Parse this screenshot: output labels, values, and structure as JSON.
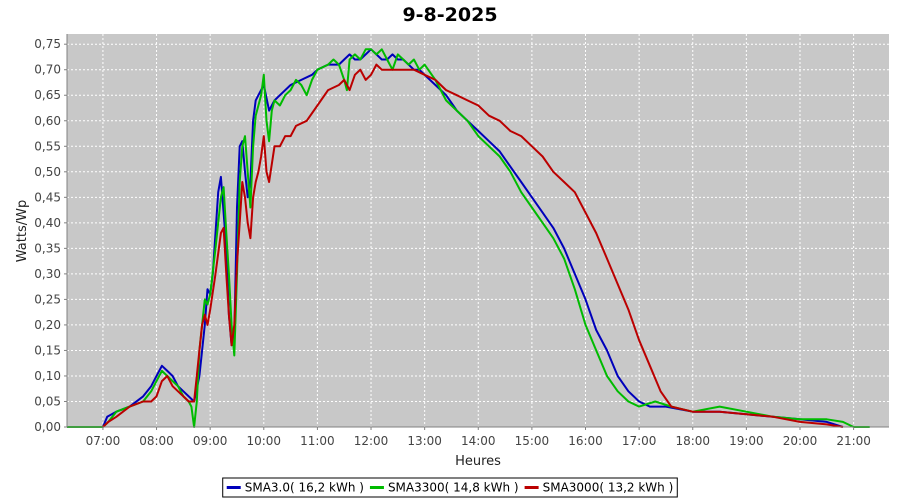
{
  "chart_data": {
    "type": "line",
    "title": "9-8-2025",
    "xlabel": "Heures",
    "ylabel": "Watts/Wp",
    "x_unit": "hours",
    "xlim": [
      6.33,
      21.66
    ],
    "ylim": [
      0,
      0.77
    ],
    "x_ticks": [
      {
        "value": 7,
        "label": "07:00"
      },
      {
        "value": 8,
        "label": "08:00"
      },
      {
        "value": 9,
        "label": "09:00"
      },
      {
        "value": 10,
        "label": "10:00"
      },
      {
        "value": 11,
        "label": "11:00"
      },
      {
        "value": 12,
        "label": "12:00"
      },
      {
        "value": 13,
        "label": "13:00"
      },
      {
        "value": 14,
        "label": "14:00"
      },
      {
        "value": 15,
        "label": "15:00"
      },
      {
        "value": 16,
        "label": "16:00"
      },
      {
        "value": 17,
        "label": "17:00"
      },
      {
        "value": 18,
        "label": "18:00"
      },
      {
        "value": 19,
        "label": "19:00"
      },
      {
        "value": 20,
        "label": "20:00"
      },
      {
        "value": 21,
        "label": "21:00"
      }
    ],
    "y_ticks": [
      {
        "value": 0.0,
        "label": "0,00"
      },
      {
        "value": 0.05,
        "label": "0,05"
      },
      {
        "value": 0.1,
        "label": "0,10"
      },
      {
        "value": 0.15,
        "label": "0,15"
      },
      {
        "value": 0.2,
        "label": "0,20"
      },
      {
        "value": 0.25,
        "label": "0,25"
      },
      {
        "value": 0.3,
        "label": "0,30"
      },
      {
        "value": 0.35,
        "label": "0,35"
      },
      {
        "value": 0.4,
        "label": "0,40"
      },
      {
        "value": 0.45,
        "label": "0,45"
      },
      {
        "value": 0.5,
        "label": "0,50"
      },
      {
        "value": 0.55,
        "label": "0,55"
      },
      {
        "value": 0.6,
        "label": "0,60"
      },
      {
        "value": 0.65,
        "label": "0,65"
      },
      {
        "value": 0.7,
        "label": "0,70"
      },
      {
        "value": 0.75,
        "label": "0,75"
      }
    ],
    "grid": true,
    "legend_position": "bottom",
    "series": [
      {
        "name": "SMA3.0( 16,2 kWh )",
        "color": "#0000bb",
        "points": [
          [
            7.0,
            0.0
          ],
          [
            7.08,
            0.02
          ],
          [
            7.25,
            0.03
          ],
          [
            7.5,
            0.04
          ],
          [
            7.75,
            0.06
          ],
          [
            7.9,
            0.08
          ],
          [
            8.0,
            0.1
          ],
          [
            8.1,
            0.12
          ],
          [
            8.2,
            0.11
          ],
          [
            8.3,
            0.1
          ],
          [
            8.4,
            0.08
          ],
          [
            8.5,
            0.07
          ],
          [
            8.6,
            0.06
          ],
          [
            8.7,
            0.05
          ],
          [
            8.8,
            0.1
          ],
          [
            8.9,
            0.2
          ],
          [
            8.95,
            0.27
          ],
          [
            9.0,
            0.26
          ],
          [
            9.05,
            0.3
          ],
          [
            9.1,
            0.38
          ],
          [
            9.15,
            0.46
          ],
          [
            9.2,
            0.49
          ],
          [
            9.3,
            0.35
          ],
          [
            9.35,
            0.22
          ],
          [
            9.4,
            0.16
          ],
          [
            9.45,
            0.18
          ],
          [
            9.5,
            0.43
          ],
          [
            9.55,
            0.55
          ],
          [
            9.6,
            0.56
          ],
          [
            9.65,
            0.5
          ],
          [
            9.7,
            0.45
          ],
          [
            9.75,
            0.48
          ],
          [
            9.8,
            0.6
          ],
          [
            9.85,
            0.64
          ],
          [
            9.9,
            0.65
          ],
          [
            9.95,
            0.66
          ],
          [
            10.0,
            0.67
          ],
          [
            10.1,
            0.62
          ],
          [
            10.2,
            0.64
          ],
          [
            10.3,
            0.65
          ],
          [
            10.5,
            0.67
          ],
          [
            10.7,
            0.68
          ],
          [
            10.9,
            0.69
          ],
          [
            11.0,
            0.7
          ],
          [
            11.2,
            0.71
          ],
          [
            11.4,
            0.71
          ],
          [
            11.5,
            0.72
          ],
          [
            11.6,
            0.73
          ],
          [
            11.7,
            0.72
          ],
          [
            11.8,
            0.72
          ],
          [
            11.9,
            0.73
          ],
          [
            12.0,
            0.74
          ],
          [
            12.1,
            0.73
          ],
          [
            12.2,
            0.72
          ],
          [
            12.3,
            0.72
          ],
          [
            12.4,
            0.73
          ],
          [
            12.5,
            0.72
          ],
          [
            12.6,
            0.72
          ],
          [
            12.7,
            0.71
          ],
          [
            12.8,
            0.7
          ],
          [
            12.9,
            0.7
          ],
          [
            13.0,
            0.69
          ],
          [
            13.2,
            0.67
          ],
          [
            13.4,
            0.65
          ],
          [
            13.6,
            0.62
          ],
          [
            13.8,
            0.6
          ],
          [
            14.0,
            0.58
          ],
          [
            14.2,
            0.56
          ],
          [
            14.4,
            0.54
          ],
          [
            14.6,
            0.51
          ],
          [
            14.8,
            0.48
          ],
          [
            15.0,
            0.45
          ],
          [
            15.2,
            0.42
          ],
          [
            15.4,
            0.39
          ],
          [
            15.6,
            0.35
          ],
          [
            15.8,
            0.3
          ],
          [
            16.0,
            0.25
          ],
          [
            16.2,
            0.19
          ],
          [
            16.4,
            0.15
          ],
          [
            16.6,
            0.1
          ],
          [
            16.8,
            0.07
          ],
          [
            17.0,
            0.05
          ],
          [
            17.2,
            0.04
          ],
          [
            17.5,
            0.04
          ],
          [
            18.0,
            0.03
          ],
          [
            18.5,
            0.03
          ],
          [
            19.0,
            0.025
          ],
          [
            19.5,
            0.02
          ],
          [
            20.0,
            0.015
          ],
          [
            20.5,
            0.01
          ],
          [
            20.8,
            0.0
          ]
        ]
      },
      {
        "name": "SMA3300( 14,8 kWh )",
        "color": "#00bb00",
        "points": [
          [
            6.33,
            0.0
          ],
          [
            6.75,
            0.0
          ],
          [
            7.0,
            0.0
          ],
          [
            7.1,
            0.01
          ],
          [
            7.25,
            0.03
          ],
          [
            7.5,
            0.04
          ],
          [
            7.75,
            0.05
          ],
          [
            7.9,
            0.07
          ],
          [
            8.0,
            0.09
          ],
          [
            8.1,
            0.11
          ],
          [
            8.2,
            0.1
          ],
          [
            8.3,
            0.09
          ],
          [
            8.4,
            0.08
          ],
          [
            8.5,
            0.06
          ],
          [
            8.6,
            0.05
          ],
          [
            8.65,
            0.04
          ],
          [
            8.7,
            0.0
          ],
          [
            8.75,
            0.05
          ],
          [
            8.8,
            0.15
          ],
          [
            8.85,
            0.2
          ],
          [
            8.9,
            0.25
          ],
          [
            8.95,
            0.24
          ],
          [
            9.0,
            0.26
          ],
          [
            9.1,
            0.35
          ],
          [
            9.2,
            0.45
          ],
          [
            9.25,
            0.47
          ],
          [
            9.3,
            0.38
          ],
          [
            9.35,
            0.3
          ],
          [
            9.4,
            0.2
          ],
          [
            9.45,
            0.14
          ],
          [
            9.5,
            0.3
          ],
          [
            9.55,
            0.48
          ],
          [
            9.6,
            0.55
          ],
          [
            9.65,
            0.57
          ],
          [
            9.7,
            0.5
          ],
          [
            9.75,
            0.43
          ],
          [
            9.8,
            0.55
          ],
          [
            9.85,
            0.61
          ],
          [
            9.9,
            0.63
          ],
          [
            9.95,
            0.65
          ],
          [
            10.0,
            0.69
          ],
          [
            10.05,
            0.6
          ],
          [
            10.1,
            0.56
          ],
          [
            10.15,
            0.62
          ],
          [
            10.2,
            0.64
          ],
          [
            10.3,
            0.63
          ],
          [
            10.4,
            0.65
          ],
          [
            10.5,
            0.66
          ],
          [
            10.6,
            0.68
          ],
          [
            10.7,
            0.67
          ],
          [
            10.8,
            0.65
          ],
          [
            10.9,
            0.68
          ],
          [
            11.0,
            0.7
          ],
          [
            11.2,
            0.71
          ],
          [
            11.3,
            0.72
          ],
          [
            11.4,
            0.71
          ],
          [
            11.5,
            0.68
          ],
          [
            11.55,
            0.66
          ],
          [
            11.6,
            0.72
          ],
          [
            11.7,
            0.73
          ],
          [
            11.8,
            0.72
          ],
          [
            11.9,
            0.74
          ],
          [
            12.0,
            0.74
          ],
          [
            12.1,
            0.73
          ],
          [
            12.2,
            0.74
          ],
          [
            12.3,
            0.72
          ],
          [
            12.4,
            0.7
          ],
          [
            12.5,
            0.73
          ],
          [
            12.6,
            0.72
          ],
          [
            12.7,
            0.71
          ],
          [
            12.8,
            0.72
          ],
          [
            12.9,
            0.7
          ],
          [
            13.0,
            0.71
          ],
          [
            13.2,
            0.68
          ],
          [
            13.4,
            0.64
          ],
          [
            13.6,
            0.62
          ],
          [
            13.8,
            0.6
          ],
          [
            14.0,
            0.57
          ],
          [
            14.2,
            0.55
          ],
          [
            14.4,
            0.53
          ],
          [
            14.6,
            0.5
          ],
          [
            14.8,
            0.46
          ],
          [
            15.0,
            0.43
          ],
          [
            15.2,
            0.4
          ],
          [
            15.4,
            0.37
          ],
          [
            15.6,
            0.33
          ],
          [
            15.8,
            0.27
          ],
          [
            16.0,
            0.2
          ],
          [
            16.2,
            0.15
          ],
          [
            16.4,
            0.1
          ],
          [
            16.6,
            0.07
          ],
          [
            16.8,
            0.05
          ],
          [
            17.0,
            0.04
          ],
          [
            17.3,
            0.05
          ],
          [
            17.6,
            0.04
          ],
          [
            18.0,
            0.03
          ],
          [
            18.5,
            0.04
          ],
          [
            19.0,
            0.03
          ],
          [
            19.5,
            0.02
          ],
          [
            20.0,
            0.015
          ],
          [
            20.5,
            0.015
          ],
          [
            20.8,
            0.01
          ],
          [
            21.0,
            0.0
          ],
          [
            21.3,
            0.0
          ]
        ]
      },
      {
        "name": "SMA3000( 13,2 kWh )",
        "color": "#bb0000",
        "points": [
          [
            7.0,
            0.0
          ],
          [
            7.1,
            0.01
          ],
          [
            7.25,
            0.02
          ],
          [
            7.5,
            0.04
          ],
          [
            7.75,
            0.05
          ],
          [
            7.9,
            0.05
          ],
          [
            8.0,
            0.06
          ],
          [
            8.1,
            0.09
          ],
          [
            8.2,
            0.1
          ],
          [
            8.3,
            0.08
          ],
          [
            8.4,
            0.07
          ],
          [
            8.5,
            0.06
          ],
          [
            8.6,
            0.05
          ],
          [
            8.7,
            0.05
          ],
          [
            8.75,
            0.1
          ],
          [
            8.8,
            0.15
          ],
          [
            8.85,
            0.2
          ],
          [
            8.9,
            0.22
          ],
          [
            8.95,
            0.2
          ],
          [
            9.0,
            0.23
          ],
          [
            9.1,
            0.3
          ],
          [
            9.2,
            0.38
          ],
          [
            9.25,
            0.39
          ],
          [
            9.3,
            0.3
          ],
          [
            9.35,
            0.22
          ],
          [
            9.4,
            0.16
          ],
          [
            9.45,
            0.2
          ],
          [
            9.5,
            0.32
          ],
          [
            9.55,
            0.4
          ],
          [
            9.6,
            0.48
          ],
          [
            9.65,
            0.45
          ],
          [
            9.7,
            0.4
          ],
          [
            9.75,
            0.37
          ],
          [
            9.8,
            0.45
          ],
          [
            9.85,
            0.48
          ],
          [
            9.9,
            0.5
          ],
          [
            9.95,
            0.53
          ],
          [
            10.0,
            0.57
          ],
          [
            10.05,
            0.5
          ],
          [
            10.1,
            0.48
          ],
          [
            10.2,
            0.55
          ],
          [
            10.3,
            0.55
          ],
          [
            10.4,
            0.57
          ],
          [
            10.5,
            0.57
          ],
          [
            10.6,
            0.59
          ],
          [
            10.8,
            0.6
          ],
          [
            11.0,
            0.63
          ],
          [
            11.2,
            0.66
          ],
          [
            11.4,
            0.67
          ],
          [
            11.5,
            0.68
          ],
          [
            11.6,
            0.66
          ],
          [
            11.7,
            0.69
          ],
          [
            11.8,
            0.7
          ],
          [
            11.9,
            0.68
          ],
          [
            12.0,
            0.69
          ],
          [
            12.1,
            0.71
          ],
          [
            12.2,
            0.7
          ],
          [
            12.4,
            0.7
          ],
          [
            12.6,
            0.7
          ],
          [
            12.8,
            0.7
          ],
          [
            13.0,
            0.69
          ],
          [
            13.2,
            0.68
          ],
          [
            13.4,
            0.66
          ],
          [
            13.6,
            0.65
          ],
          [
            13.8,
            0.64
          ],
          [
            14.0,
            0.63
          ],
          [
            14.2,
            0.61
          ],
          [
            14.4,
            0.6
          ],
          [
            14.6,
            0.58
          ],
          [
            14.8,
            0.57
          ],
          [
            15.0,
            0.55
          ],
          [
            15.2,
            0.53
          ],
          [
            15.4,
            0.5
          ],
          [
            15.6,
            0.48
          ],
          [
            15.8,
            0.46
          ],
          [
            16.0,
            0.42
          ],
          [
            16.2,
            0.38
          ],
          [
            16.4,
            0.33
          ],
          [
            16.6,
            0.28
          ],
          [
            16.8,
            0.23
          ],
          [
            17.0,
            0.17
          ],
          [
            17.2,
            0.12
          ],
          [
            17.4,
            0.07
          ],
          [
            17.6,
            0.04
          ],
          [
            18.0,
            0.03
          ],
          [
            18.5,
            0.03
          ],
          [
            19.0,
            0.025
          ],
          [
            19.5,
            0.02
          ],
          [
            20.0,
            0.01
          ],
          [
            20.5,
            0.005
          ],
          [
            20.8,
            0.0
          ]
        ]
      }
    ]
  }
}
